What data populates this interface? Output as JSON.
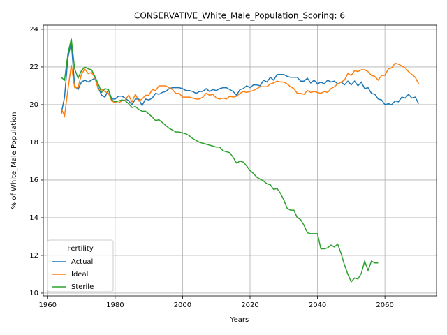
{
  "chart_data": {
    "type": "line",
    "title": "CONSERVATIVE_White_Male_Population_Scoring: 6",
    "x_label": "Years",
    "y_label": "% of White_Male Population",
    "x": [
      1964,
      1965,
      1966,
      1967,
      1968,
      1969,
      1970,
      1971,
      1972,
      1973,
      1974,
      1975,
      1976,
      1977,
      1978,
      1979,
      1980,
      1981,
      1982,
      1983,
      1984,
      1985,
      1986,
      1987,
      1988,
      1989,
      1990,
      1991,
      1992,
      1993,
      1994,
      1995,
      1996,
      1997,
      1998,
      1999,
      2000,
      2001,
      2002,
      2003,
      2004,
      2005,
      2006,
      2007,
      2008,
      2009,
      2010,
      2011,
      2012,
      2013,
      2014,
      2015,
      2016,
      2017,
      2018,
      2019,
      2020,
      2021,
      2022,
      2023,
      2024,
      2025,
      2026,
      2027,
      2028,
      2029,
      2030,
      2031,
      2032,
      2033,
      2034,
      2035,
      2036,
      2037,
      2038,
      2039,
      2040,
      2041,
      2042,
      2043,
      2044,
      2045,
      2046,
      2047,
      2048,
      2049,
      2050,
      2051,
      2052,
      2053,
      2054,
      2055,
      2056,
      2057,
      2058,
      2059,
      2060,
      2061,
      2062,
      2063,
      2064,
      2065,
      2066,
      2067,
      2068,
      2069,
      2070
    ],
    "series": [
      {
        "name": "Actual",
        "color": "#1f77b4",
        "values": [
          19.5,
          20.4,
          22.5,
          23.3,
          21.0,
          20.8,
          21.2,
          21.3,
          21.2,
          21.3,
          21.4,
          20.9,
          20.5,
          20.4,
          20.8,
          20.3,
          20.3,
          20.45,
          20.45,
          20.35,
          20.2,
          20.0,
          20.3,
          20.3,
          19.95,
          20.3,
          20.25,
          20.35,
          20.6,
          20.55,
          20.65,
          20.7,
          20.85,
          20.9,
          20.9,
          20.9,
          20.85,
          20.75,
          20.75,
          20.7,
          20.6,
          20.7,
          20.7,
          20.85,
          20.7,
          20.8,
          20.75,
          20.85,
          20.9,
          20.9,
          20.8,
          20.7,
          20.5,
          20.8,
          20.85,
          21.0,
          20.9,
          21.05,
          21.05,
          21.0,
          21.3,
          21.2,
          21.45,
          21.3,
          21.6,
          21.6,
          21.6,
          21.5,
          21.45,
          21.45,
          21.45,
          21.25,
          21.25,
          21.4,
          21.15,
          21.3,
          21.1,
          21.2,
          21.1,
          21.3,
          21.2,
          21.25,
          21.1,
          21.2,
          21.05,
          21.25,
          21.05,
          21.25,
          21.0,
          21.2,
          20.85,
          20.9,
          20.6,
          20.55,
          20.3,
          20.25,
          20.0,
          20.05,
          20.0,
          20.2,
          20.15,
          20.4,
          20.35,
          20.55,
          20.35,
          20.4,
          20.05
        ]
      },
      {
        "name": "Ideal",
        "color": "#ff7f0e",
        "values": [
          19.8,
          19.4,
          20.8,
          22.1,
          20.9,
          20.9,
          21.6,
          21.9,
          21.65,
          21.7,
          21.45,
          20.8,
          20.8,
          20.7,
          20.6,
          20.2,
          20.1,
          20.1,
          20.2,
          20.25,
          20.5,
          20.15,
          20.55,
          20.2,
          20.3,
          20.5,
          20.5,
          20.8,
          20.75,
          21.0,
          21.0,
          21.0,
          20.9,
          20.8,
          20.6,
          20.6,
          20.4,
          20.4,
          20.4,
          20.35,
          20.3,
          20.3,
          20.4,
          20.6,
          20.5,
          20.55,
          20.35,
          20.3,
          20.35,
          20.3,
          20.45,
          20.4,
          20.45,
          20.6,
          20.7,
          20.65,
          20.7,
          20.75,
          20.85,
          20.95,
          20.95,
          20.95,
          21.1,
          21.15,
          21.25,
          21.2,
          21.2,
          21.1,
          20.95,
          20.85,
          20.6,
          20.6,
          20.55,
          20.75,
          20.65,
          20.7,
          20.65,
          20.6,
          20.7,
          20.65,
          20.85,
          20.95,
          21.1,
          21.2,
          21.3,
          21.65,
          21.55,
          21.8,
          21.75,
          21.85,
          21.85,
          21.75,
          21.55,
          21.5,
          21.3,
          21.55,
          21.55,
          21.9,
          21.95,
          22.2,
          22.15,
          22.05,
          21.95,
          21.75,
          21.6,
          21.45,
          21.1
        ]
      },
      {
        "name": "Sterile",
        "color": "#2ca02c",
        "values": [
          21.45,
          21.3,
          22.7,
          23.5,
          21.9,
          21.4,
          21.8,
          22.0,
          21.9,
          21.85,
          21.5,
          21.1,
          20.65,
          20.85,
          20.8,
          20.25,
          20.15,
          20.2,
          20.25,
          20.2,
          20.05,
          19.85,
          19.9,
          19.75,
          19.65,
          19.65,
          19.5,
          19.35,
          19.15,
          19.2,
          19.05,
          18.9,
          18.75,
          18.65,
          18.55,
          18.55,
          18.5,
          18.45,
          18.35,
          18.2,
          18.1,
          18.0,
          17.95,
          17.9,
          17.85,
          17.8,
          17.75,
          17.75,
          17.55,
          17.5,
          17.45,
          17.2,
          16.9,
          17.0,
          16.95,
          16.75,
          16.5,
          16.35,
          16.15,
          16.05,
          15.95,
          15.8,
          15.75,
          15.5,
          15.55,
          15.3,
          14.95,
          14.5,
          14.4,
          14.4,
          14.0,
          13.9,
          13.6,
          13.2,
          13.15,
          13.15,
          13.15,
          12.35,
          12.35,
          12.4,
          12.55,
          12.45,
          12.6,
          12.1,
          11.5,
          11.0,
          10.6,
          10.8,
          10.75,
          11.05,
          11.7,
          11.2,
          11.7,
          11.6,
          11.6,
          null,
          null,
          null,
          null,
          null,
          null,
          null,
          null,
          null,
          null,
          null,
          null
        ]
      }
    ],
    "xlim": [
      1958.7,
      2075.3
    ],
    "ylim": [
      9.85,
      24.22
    ],
    "xticks": [
      1960,
      1980,
      2000,
      2020,
      2040,
      2060
    ],
    "yticks": [
      10,
      12,
      14,
      16,
      18,
      20,
      22,
      24
    ],
    "grid": true,
    "legend_title": "Fertility",
    "legend_position": "lower left"
  }
}
